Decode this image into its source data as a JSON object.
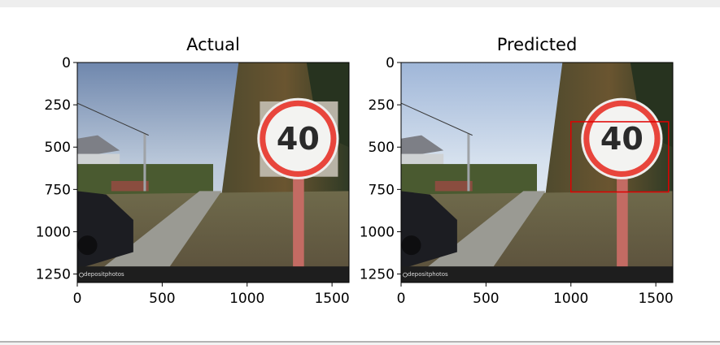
{
  "chart_data": [
    {
      "type": "image",
      "title": "Actual",
      "xticks": [
        0,
        500,
        1000,
        1500
      ],
      "yticks": [
        0,
        250,
        500,
        750,
        1000,
        1250
      ],
      "xlim": [
        0,
        1600
      ],
      "ylim": [
        1300,
        0
      ],
      "sign_text": "40",
      "watermark": "depositphotos",
      "crop_box": {
        "x0": 1075,
        "y0": 230,
        "x1": 1535,
        "y1": 675
      },
      "crop_box_color": "#bfb9ad"
    },
    {
      "type": "image",
      "title": "Predicted",
      "xticks": [
        0,
        500,
        1000,
        1500
      ],
      "yticks": [
        0,
        250,
        500,
        750,
        1000,
        1250
      ],
      "xlim": [
        0,
        1600
      ],
      "ylim": [
        1300,
        0
      ],
      "sign_text": "40",
      "watermark": "depositphotos",
      "bbox": {
        "x0": 1000,
        "y0": 350,
        "x1": 1575,
        "y1": 765
      },
      "bbox_color": "#e00000"
    }
  ]
}
